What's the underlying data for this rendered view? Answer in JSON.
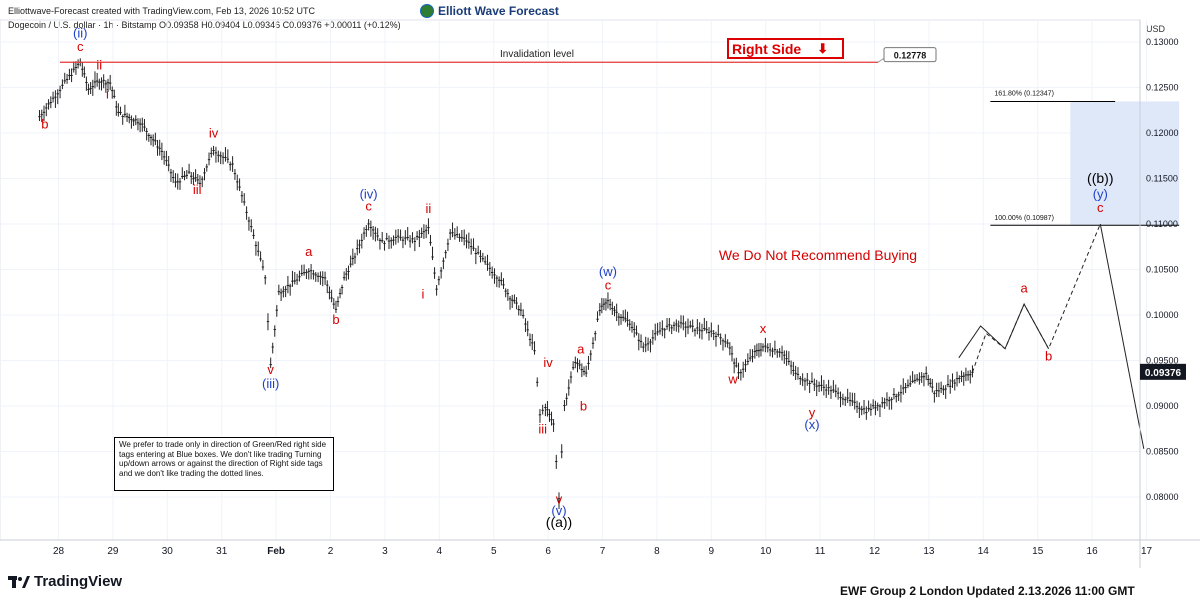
{
  "header": {
    "source_line": "Elliottwave-Forecast created with TradingView.com, Feb 13, 2026 10:52 UTC",
    "symbol_line": "Dogecoin / U.S. dollar · 1h · Bitstamp  O0.09358 H0.09404 L0.09346 C0.09376 +0.00011 (+0.12%)",
    "brand": "Elliott Wave Forecast"
  },
  "axis": {
    "currency": "USD"
  },
  "chart_data": {
    "type": "line",
    "title": "",
    "xlabel": "",
    "ylabel": "",
    "ylim": [
      0.0755,
      0.1322
    ],
    "x_ticks": [
      "28",
      "29",
      "30",
      "31",
      "Feb",
      "2",
      "3",
      "4",
      "5",
      "6",
      "7",
      "8",
      "9",
      "10",
      "11",
      "12",
      "13",
      "14",
      "15",
      "16",
      "17"
    ],
    "y_ticks": [
      "0.13000",
      "0.12500",
      "0.12000",
      "0.11500",
      "0.11000",
      "0.10500",
      "0.10000",
      "0.09500",
      "0.09000",
      "0.08500",
      "0.08000"
    ],
    "series": [
      {
        "price_path": [
          [
            27.65,
            0.1218
          ],
          [
            27.9,
            0.1238
          ],
          [
            28.2,
            0.1262
          ],
          [
            28.4,
            0.1278
          ],
          [
            28.55,
            0.1248
          ],
          [
            28.75,
            0.1258
          ],
          [
            28.95,
            0.1255
          ],
          [
            29.1,
            0.1222
          ],
          [
            29.5,
            0.1212
          ],
          [
            29.9,
            0.118
          ],
          [
            30.15,
            0.1145
          ],
          [
            30.4,
            0.1155
          ],
          [
            30.6,
            0.1145
          ],
          [
            30.85,
            0.1182
          ],
          [
            31.2,
            0.1165
          ],
          [
            31.5,
            0.1105
          ],
          [
            31.8,
            0.1042
          ],
          [
            31.9,
            0.0945
          ],
          [
            32.05,
            0.1025
          ],
          [
            32.3,
            0.1035
          ],
          [
            32.6,
            0.105
          ],
          [
            32.9,
            0.104
          ],
          [
            33.1,
            0.1005
          ],
          [
            33.25,
            0.104
          ],
          [
            33.45,
            0.1065
          ],
          [
            33.7,
            0.1102
          ],
          [
            33.95,
            0.108
          ],
          [
            34.2,
            0.1085
          ],
          [
            34.55,
            0.1082
          ],
          [
            34.8,
            0.1095
          ],
          [
            34.95,
            0.103
          ],
          [
            35.2,
            0.109
          ],
          [
            35.5,
            0.1082
          ],
          [
            35.8,
            0.106
          ],
          [
            36.1,
            0.104
          ],
          [
            36.3,
            0.102
          ],
          [
            36.5,
            0.1005
          ],
          [
            36.75,
            0.096
          ],
          [
            36.85,
            0.089
          ],
          [
            36.95,
            0.09
          ],
          [
            37.1,
            0.088
          ],
          [
            37.2,
            0.08
          ],
          [
            37.3,
            0.09
          ],
          [
            37.5,
            0.095
          ],
          [
            37.7,
            0.0935
          ],
          [
            37.95,
            0.1005
          ],
          [
            38.1,
            0.1015
          ],
          [
            38.3,
            0.1
          ],
          [
            38.5,
            0.0992
          ],
          [
            38.75,
            0.0965
          ],
          [
            39.1,
            0.0985
          ],
          [
            39.4,
            0.099
          ],
          [
            39.7,
            0.0985
          ],
          [
            40.0,
            0.0982
          ],
          [
            40.3,
            0.097
          ],
          [
            40.5,
            0.0935
          ],
          [
            40.8,
            0.0958
          ],
          [
            40.95,
            0.0965
          ],
          [
            41.3,
            0.096
          ],
          [
            41.55,
            0.0935
          ],
          [
            41.85,
            0.0925
          ],
          [
            42.2,
            0.0918
          ],
          [
            42.55,
            0.0905
          ],
          [
            42.85,
            0.0895
          ],
          [
            43.1,
            0.0902
          ],
          [
            43.4,
            0.0912
          ],
          [
            43.7,
            0.0925
          ],
          [
            43.95,
            0.0935
          ],
          [
            44.1,
            0.0915
          ],
          [
            44.35,
            0.0922
          ],
          [
            44.6,
            0.0933
          ],
          [
            44.8,
            0.0937
          ]
        ]
      },
      {
        "projection_dashed": [
          [
            44.8,
            0.0937
          ],
          [
            45.05,
            0.098
          ],
          [
            45.4,
            0.0963
          ],
          [
            45.75,
            0.1012
          ],
          [
            46.2,
            0.0963
          ],
          [
            47.15,
            0.11
          ]
        ]
      },
      {
        "projection_solid": [
          [
            44.55,
            0.0953
          ],
          [
            44.95,
            0.0988
          ],
          [
            45.4,
            0.0963
          ],
          [
            45.75,
            0.1012
          ],
          [
            46.2,
            0.0963
          ]
        ]
      },
      {
        "projection_decline": [
          [
            47.15,
            0.11
          ],
          [
            47.95,
            0.0853
          ]
        ]
      }
    ],
    "invalidation_level": 0.12778,
    "invalidation_label": "Invalidation level",
    "invalidation_tag": "0.12778",
    "target_zone": {
      "x": [
        46.6,
        48.6
      ],
      "y": [
        0.10987,
        0.12347
      ],
      "top_label": "161.80% (0.12347)",
      "bottom_label": "100.00% (0.10987)"
    },
    "current_price": 0.09376,
    "current_price_label": "0.09376",
    "wave_labels": [
      {
        "text": "b",
        "x": 27.75,
        "y": 0.1205,
        "color": "red"
      },
      {
        "text": "c",
        "x": 28.4,
        "y": 0.129,
        "color": "red"
      },
      {
        "text": "(ii)",
        "x": 28.4,
        "y": 0.1305,
        "color": "blue"
      },
      {
        "text": "ii",
        "x": 28.75,
        "y": 0.127,
        "color": "red"
      },
      {
        "text": "i",
        "x": 28.9,
        "y": 0.1238,
        "color": "red"
      },
      {
        "text": "iii",
        "x": 30.55,
        "y": 0.1133,
        "color": "red"
      },
      {
        "text": "iv",
        "x": 30.85,
        "y": 0.1195,
        "color": "red"
      },
      {
        "text": "v",
        "x": 31.9,
        "y": 0.0935,
        "color": "red"
      },
      {
        "text": "(iii)",
        "x": 31.9,
        "y": 0.092,
        "color": "blue"
      },
      {
        "text": "a",
        "x": 32.6,
        "y": 0.1065,
        "color": "red"
      },
      {
        "text": "b",
        "x": 33.1,
        "y": 0.099,
        "color": "red"
      },
      {
        "text": "c",
        "x": 33.7,
        "y": 0.1115,
        "color": "red"
      },
      {
        "text": "(iv)",
        "x": 33.7,
        "y": 0.1128,
        "color": "blue"
      },
      {
        "text": "ii",
        "x": 34.8,
        "y": 0.1112,
        "color": "red"
      },
      {
        "text": "i",
        "x": 34.7,
        "y": 0.1018,
        "color": "red"
      },
      {
        "text": "a",
        "x": 37.6,
        "y": 0.0958,
        "color": "red"
      },
      {
        "text": "iv",
        "x": 37.0,
        "y": 0.0943,
        "color": "red"
      },
      {
        "text": "b",
        "x": 37.65,
        "y": 0.0895,
        "color": "red"
      },
      {
        "text": "iii",
        "x": 36.9,
        "y": 0.087,
        "color": "red"
      },
      {
        "text": "c",
        "x": 38.1,
        "y": 0.1028,
        "color": "red"
      },
      {
        "text": "(w)",
        "x": 38.1,
        "y": 0.1043,
        "color": "blue"
      },
      {
        "text": "w",
        "x": 40.4,
        "y": 0.0925,
        "color": "red"
      },
      {
        "text": "x",
        "x": 40.95,
        "y": 0.098,
        "color": "red"
      },
      {
        "text": "y",
        "x": 41.85,
        "y": 0.0888,
        "color": "red"
      },
      {
        "text": "(x)",
        "x": 41.85,
        "y": 0.0875,
        "color": "blue"
      },
      {
        "text": "v",
        "x": 37.2,
        "y": 0.0793,
        "color": "red"
      },
      {
        "text": "(v)",
        "x": 37.2,
        "y": 0.078,
        "color": "blue"
      },
      {
        "text": "((a))",
        "x": 37.2,
        "y": 0.0767,
        "color": "black"
      },
      {
        "text": "a",
        "x": 45.75,
        "y": 0.1025,
        "color": "red"
      },
      {
        "text": "b",
        "x": 46.2,
        "y": 0.095,
        "color": "red"
      },
      {
        "text": "c",
        "x": 47.15,
        "y": 0.1113,
        "color": "red"
      },
      {
        "text": "(y)",
        "x": 47.15,
        "y": 0.1128,
        "color": "blue"
      },
      {
        "text": "((b))",
        "x": 47.15,
        "y": 0.1145,
        "color": "black"
      }
    ],
    "annotation": "We Do Not Recommend Buying",
    "grid": true
  },
  "note_box": {
    "text": "We prefer to trade only in direction of Green/Red right side tags entering at Blue boxes. We don't like trading Turning up/down arrows or against the direction of Right side tags and we don't like trading the dotted lines."
  },
  "right_side_tag": {
    "label": "Right Side",
    "arrow": "⬇"
  },
  "footer": {
    "tradingview": "TradingView",
    "update_note": "EWF Group 2 London Updated 2.13.2026 11:00 GMT"
  },
  "colors": {
    "red": "#d50000",
    "blue": "#1e40c8",
    "black": "#000000",
    "zone": "#dce6f8",
    "invalidation": "#e53935"
  }
}
